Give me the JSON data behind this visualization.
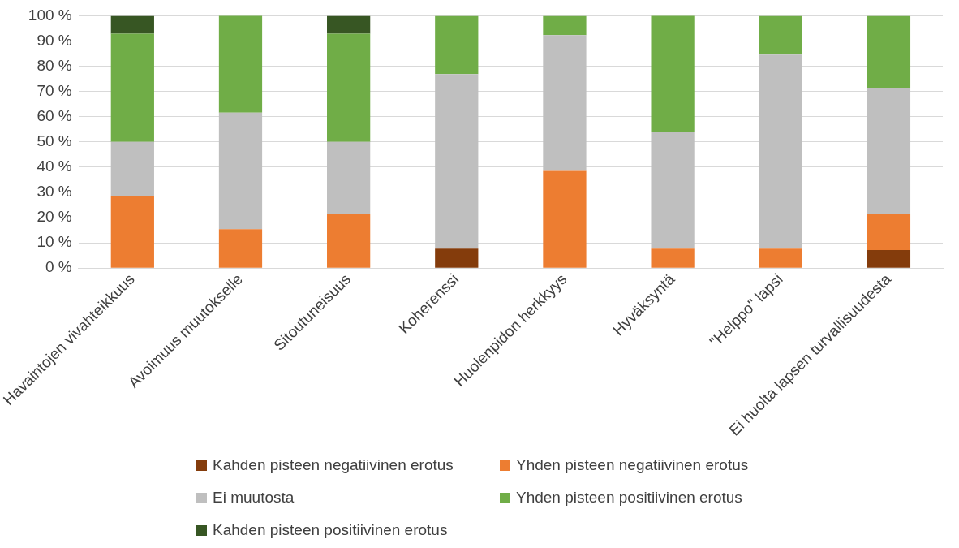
{
  "chart_data": {
    "type": "bar",
    "stacked": true,
    "categories": [
      "Havaintojen vivahteikkuus",
      "Avoimuus muutokselle",
      "Sitoutuneisuus",
      "Koherenssi",
      "Huolenpidon herkkyys",
      "Hyväksyntä",
      "\"Helppo\" lapsi",
      "Ei huolta lapsen turvallisuudesta"
    ],
    "series": [
      {
        "name": "Kahden pisteen negatiivinen erotus",
        "color": "#843c0c",
        "values": [
          0,
          0,
          0,
          7.7,
          0,
          0,
          0,
          7.1
        ]
      },
      {
        "name": "Yhden pisteen negatiivinen erotus",
        "color": "#ed7d31",
        "values": [
          28.6,
          15.4,
          21.4,
          0,
          38.5,
          7.7,
          7.7,
          14.3
        ]
      },
      {
        "name": "Ei muutosta",
        "color": "#bfbfbf",
        "values": [
          21.4,
          46.2,
          28.6,
          69.2,
          53.8,
          46.2,
          76.9,
          50
        ]
      },
      {
        "name": "Yhden pisteen positiivinen erotus",
        "color": "#70ad47",
        "values": [
          42.9,
          38.5,
          42.9,
          23.1,
          7.7,
          46.2,
          15.4,
          28.6
        ]
      },
      {
        "name": "Kahden pisteen positiivinen erotus",
        "color": "#375623",
        "values": [
          7.1,
          0,
          7.1,
          0,
          0,
          0,
          0,
          0
        ]
      }
    ],
    "ylim": [
      0,
      100
    ],
    "yticks": [
      {
        "value": 0,
        "label": "0 %"
      },
      {
        "value": 10,
        "label": "10 %"
      },
      {
        "value": 20,
        "label": "20 %"
      },
      {
        "value": 30,
        "label": "30 %"
      },
      {
        "value": 40,
        "label": "40 %"
      },
      {
        "value": 50,
        "label": "50 %"
      },
      {
        "value": 60,
        "label": "60 %"
      },
      {
        "value": 70,
        "label": "70 %"
      },
      {
        "value": 80,
        "label": "80 %"
      },
      {
        "value": 90,
        "label": "90 %"
      },
      {
        "value": 100,
        "label": "100 %"
      }
    ],
    "grid": "y",
    "legend": "bottom"
  }
}
